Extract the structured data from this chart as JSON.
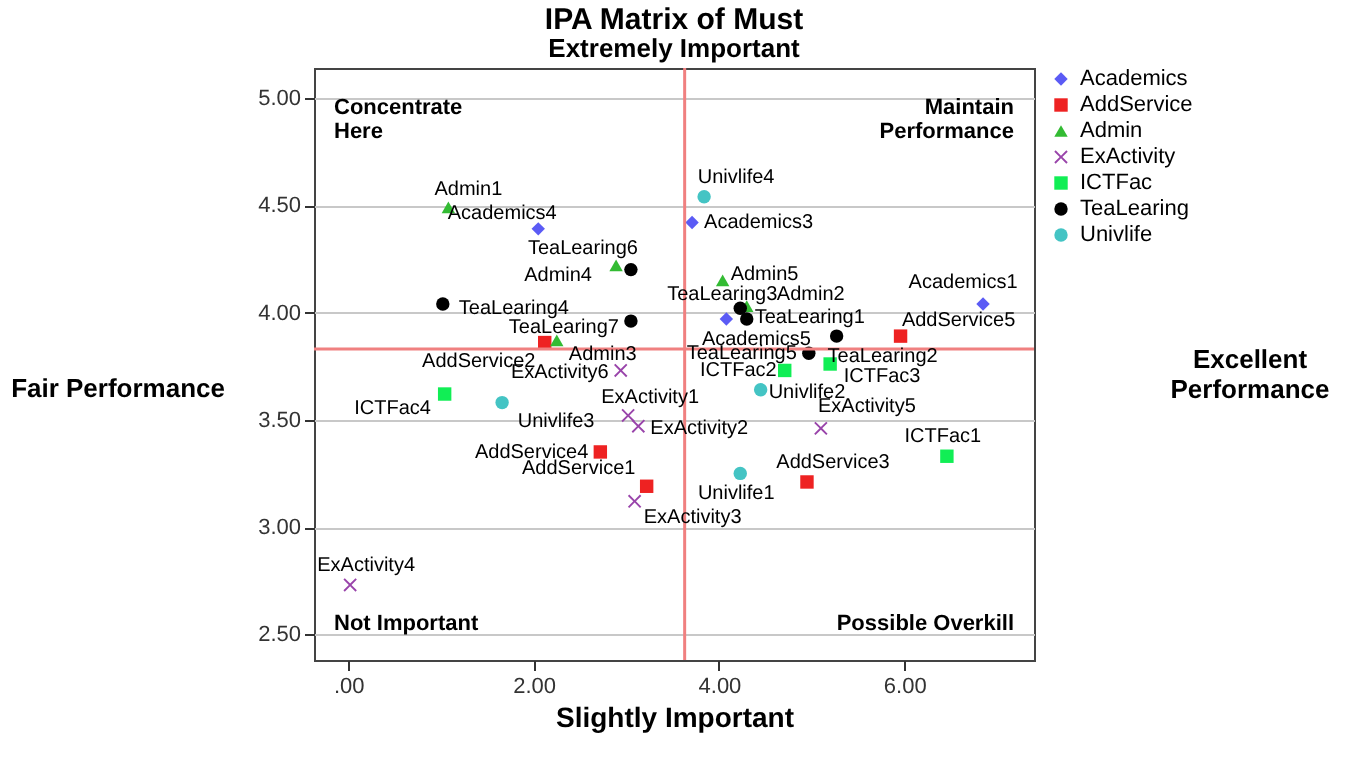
{
  "chart_data": {
    "type": "scatter",
    "title": "IPA Matrix of Must",
    "subtitle": "Extremely Important",
    "xlabel": "Slightly Important",
    "ylabel": "Fair Performance",
    "xlim": [
      -0.37,
      7.4
    ],
    "ylim": [
      2.38,
      5.14
    ],
    "xticks": [
      {
        "value": 0,
        "label": ".00"
      },
      {
        "value": 2,
        "label": "2.00"
      },
      {
        "value": 4,
        "label": "4.00"
      },
      {
        "value": 6,
        "label": "6.00"
      }
    ],
    "yticks": [
      {
        "value": 2.5,
        "label": "2.50"
      },
      {
        "value": 3,
        "label": "3.00"
      },
      {
        "value": 3.5,
        "label": "3.50"
      },
      {
        "value": 4,
        "label": "4.00"
      },
      {
        "value": 4.5,
        "label": "4.50"
      },
      {
        "value": 5,
        "label": "5.00"
      }
    ],
    "grid": "y",
    "legend": "top right",
    "ref_lines": [
      {
        "axis": "x",
        "value": 3.63,
        "color": "#f08080"
      },
      {
        "axis": "y",
        "value": 3.83,
        "color": "#f08080"
      }
    ],
    "series": [
      {
        "name": "Academics",
        "color": "#5b5bf5",
        "marker": "diamond",
        "x": [
          6.85,
          3.71,
          2.05,
          4.08
        ],
        "values": [
          4.04,
          4.42,
          4.39,
          3.97
        ]
      },
      {
        "name": "AddService",
        "color": "#ee2222",
        "marker": "square",
        "x": [
          3.22,
          2.12,
          4.95,
          2.72,
          5.96
        ],
        "values": [
          3.19,
          3.86,
          3.21,
          3.35,
          3.89
        ]
      },
      {
        "name": "Admin",
        "color": "#33bb33",
        "marker": "triangle",
        "x": [
          1.08,
          4.3,
          2.25,
          2.89,
          4.04
        ],
        "values": [
          4.49,
          4.03,
          3.87,
          4.22,
          4.15
        ]
      },
      {
        "name": "ExActivity",
        "color": "#9944aa",
        "marker": "cross",
        "x": [
          3.02,
          3.13,
          3.09,
          0.02,
          5.1,
          2.94
        ],
        "values": [
          3.52,
          3.47,
          3.12,
          2.73,
          3.46,
          3.73
        ]
      },
      {
        "name": "ICTFac",
        "color": "#11ee55",
        "marker": "square",
        "x": [
          6.46,
          4.71,
          5.2,
          1.04
        ],
        "values": [
          3.33,
          3.73,
          3.76,
          3.62
        ]
      },
      {
        "name": "TeaLearing",
        "color": "#000000",
        "marker": "circle",
        "x": [
          4.3,
          5.27,
          4.23,
          1.02,
          4.97,
          3.05,
          3.05
        ],
        "values": [
          3.97,
          3.89,
          4.02,
          4.04,
          3.81,
          4.2,
          3.96
        ]
      },
      {
        "name": "Univlife",
        "color": "#44c4c4",
        "marker": "circle",
        "x": [
          4.23,
          4.45,
          1.66,
          3.84
        ],
        "values": [
          3.25,
          3.64,
          3.58,
          4.54
        ]
      }
    ],
    "annotations": [
      "Concentrate Here",
      "Maintain Performance",
      "Not Important",
      "Possible Overkill",
      "Excellent Performance",
      {
        "text": "Academics1",
        "x": 6.85,
        "y": 4.04
      },
      {
        "text": "Academics3",
        "x": 3.71,
        "y": 4.42
      },
      {
        "text": "Academics4",
        "x": 2.05,
        "y": 4.39
      },
      {
        "text": "Academics5",
        "x": 4.08,
        "y": 3.97
      },
      {
        "text": "AddService1",
        "x": 3.22,
        "y": 3.19
      },
      {
        "text": "AddService2",
        "x": 2.12,
        "y": 3.86
      },
      {
        "text": "AddService3",
        "x": 4.95,
        "y": 3.21
      },
      {
        "text": "AddService4",
        "x": 2.72,
        "y": 3.35
      },
      {
        "text": "AddService5",
        "x": 5.96,
        "y": 3.89
      },
      {
        "text": "Admin1",
        "x": 1.08,
        "y": 4.49
      },
      {
        "text": "Admin2",
        "x": 4.3,
        "y": 4.03
      },
      {
        "text": "Admin3",
        "x": 2.25,
        "y": 3.87
      },
      {
        "text": "Admin4",
        "x": 2.89,
        "y": 4.22
      },
      {
        "text": "Admin5",
        "x": 4.04,
        "y": 4.15
      },
      {
        "text": "ExActivity1",
        "x": 3.02,
        "y": 3.52
      },
      {
        "text": "ExActivity2",
        "x": 3.13,
        "y": 3.47
      },
      {
        "text": "ExActivity3",
        "x": 3.09,
        "y": 3.12
      },
      {
        "text": "ExActivity4",
        "x": 0.02,
        "y": 2.73
      },
      {
        "text": "ExActivity5",
        "x": 5.1,
        "y": 3.46
      },
      {
        "text": "ExActivity6",
        "x": 2.94,
        "y": 3.73
      },
      {
        "text": "ICTFac1",
        "x": 6.46,
        "y": 3.33
      },
      {
        "text": "ICTFac2",
        "x": 4.71,
        "y": 3.73
      },
      {
        "text": "ICTFac3",
        "x": 5.2,
        "y": 3.76
      },
      {
        "text": "ICTFac4",
        "x": 1.04,
        "y": 3.62
      },
      {
        "text": "TeaLearing1",
        "x": 4.3,
        "y": 3.97
      },
      {
        "text": "TeaLearing2",
        "x": 5.27,
        "y": 3.89
      },
      {
        "text": "TeaLearing3",
        "x": 4.23,
        "y": 4.02
      },
      {
        "text": "TeaLearing4",
        "x": 1.02,
        "y": 4.04
      },
      {
        "text": "TeaLearing5",
        "x": 4.97,
        "y": 3.81
      },
      {
        "text": "TeaLearing6",
        "x": 3.05,
        "y": 4.2
      },
      {
        "text": "TeaLearing7",
        "x": 3.05,
        "y": 3.96
      },
      {
        "text": "Univlife1",
        "x": 4.23,
        "y": 3.25
      },
      {
        "text": "Univlife2",
        "x": 4.45,
        "y": 3.64
      },
      {
        "text": "Univlife3",
        "x": 1.66,
        "y": 3.58
      },
      {
        "text": "Univlife4",
        "x": 3.84,
        "y": 4.54
      }
    ]
  }
}
